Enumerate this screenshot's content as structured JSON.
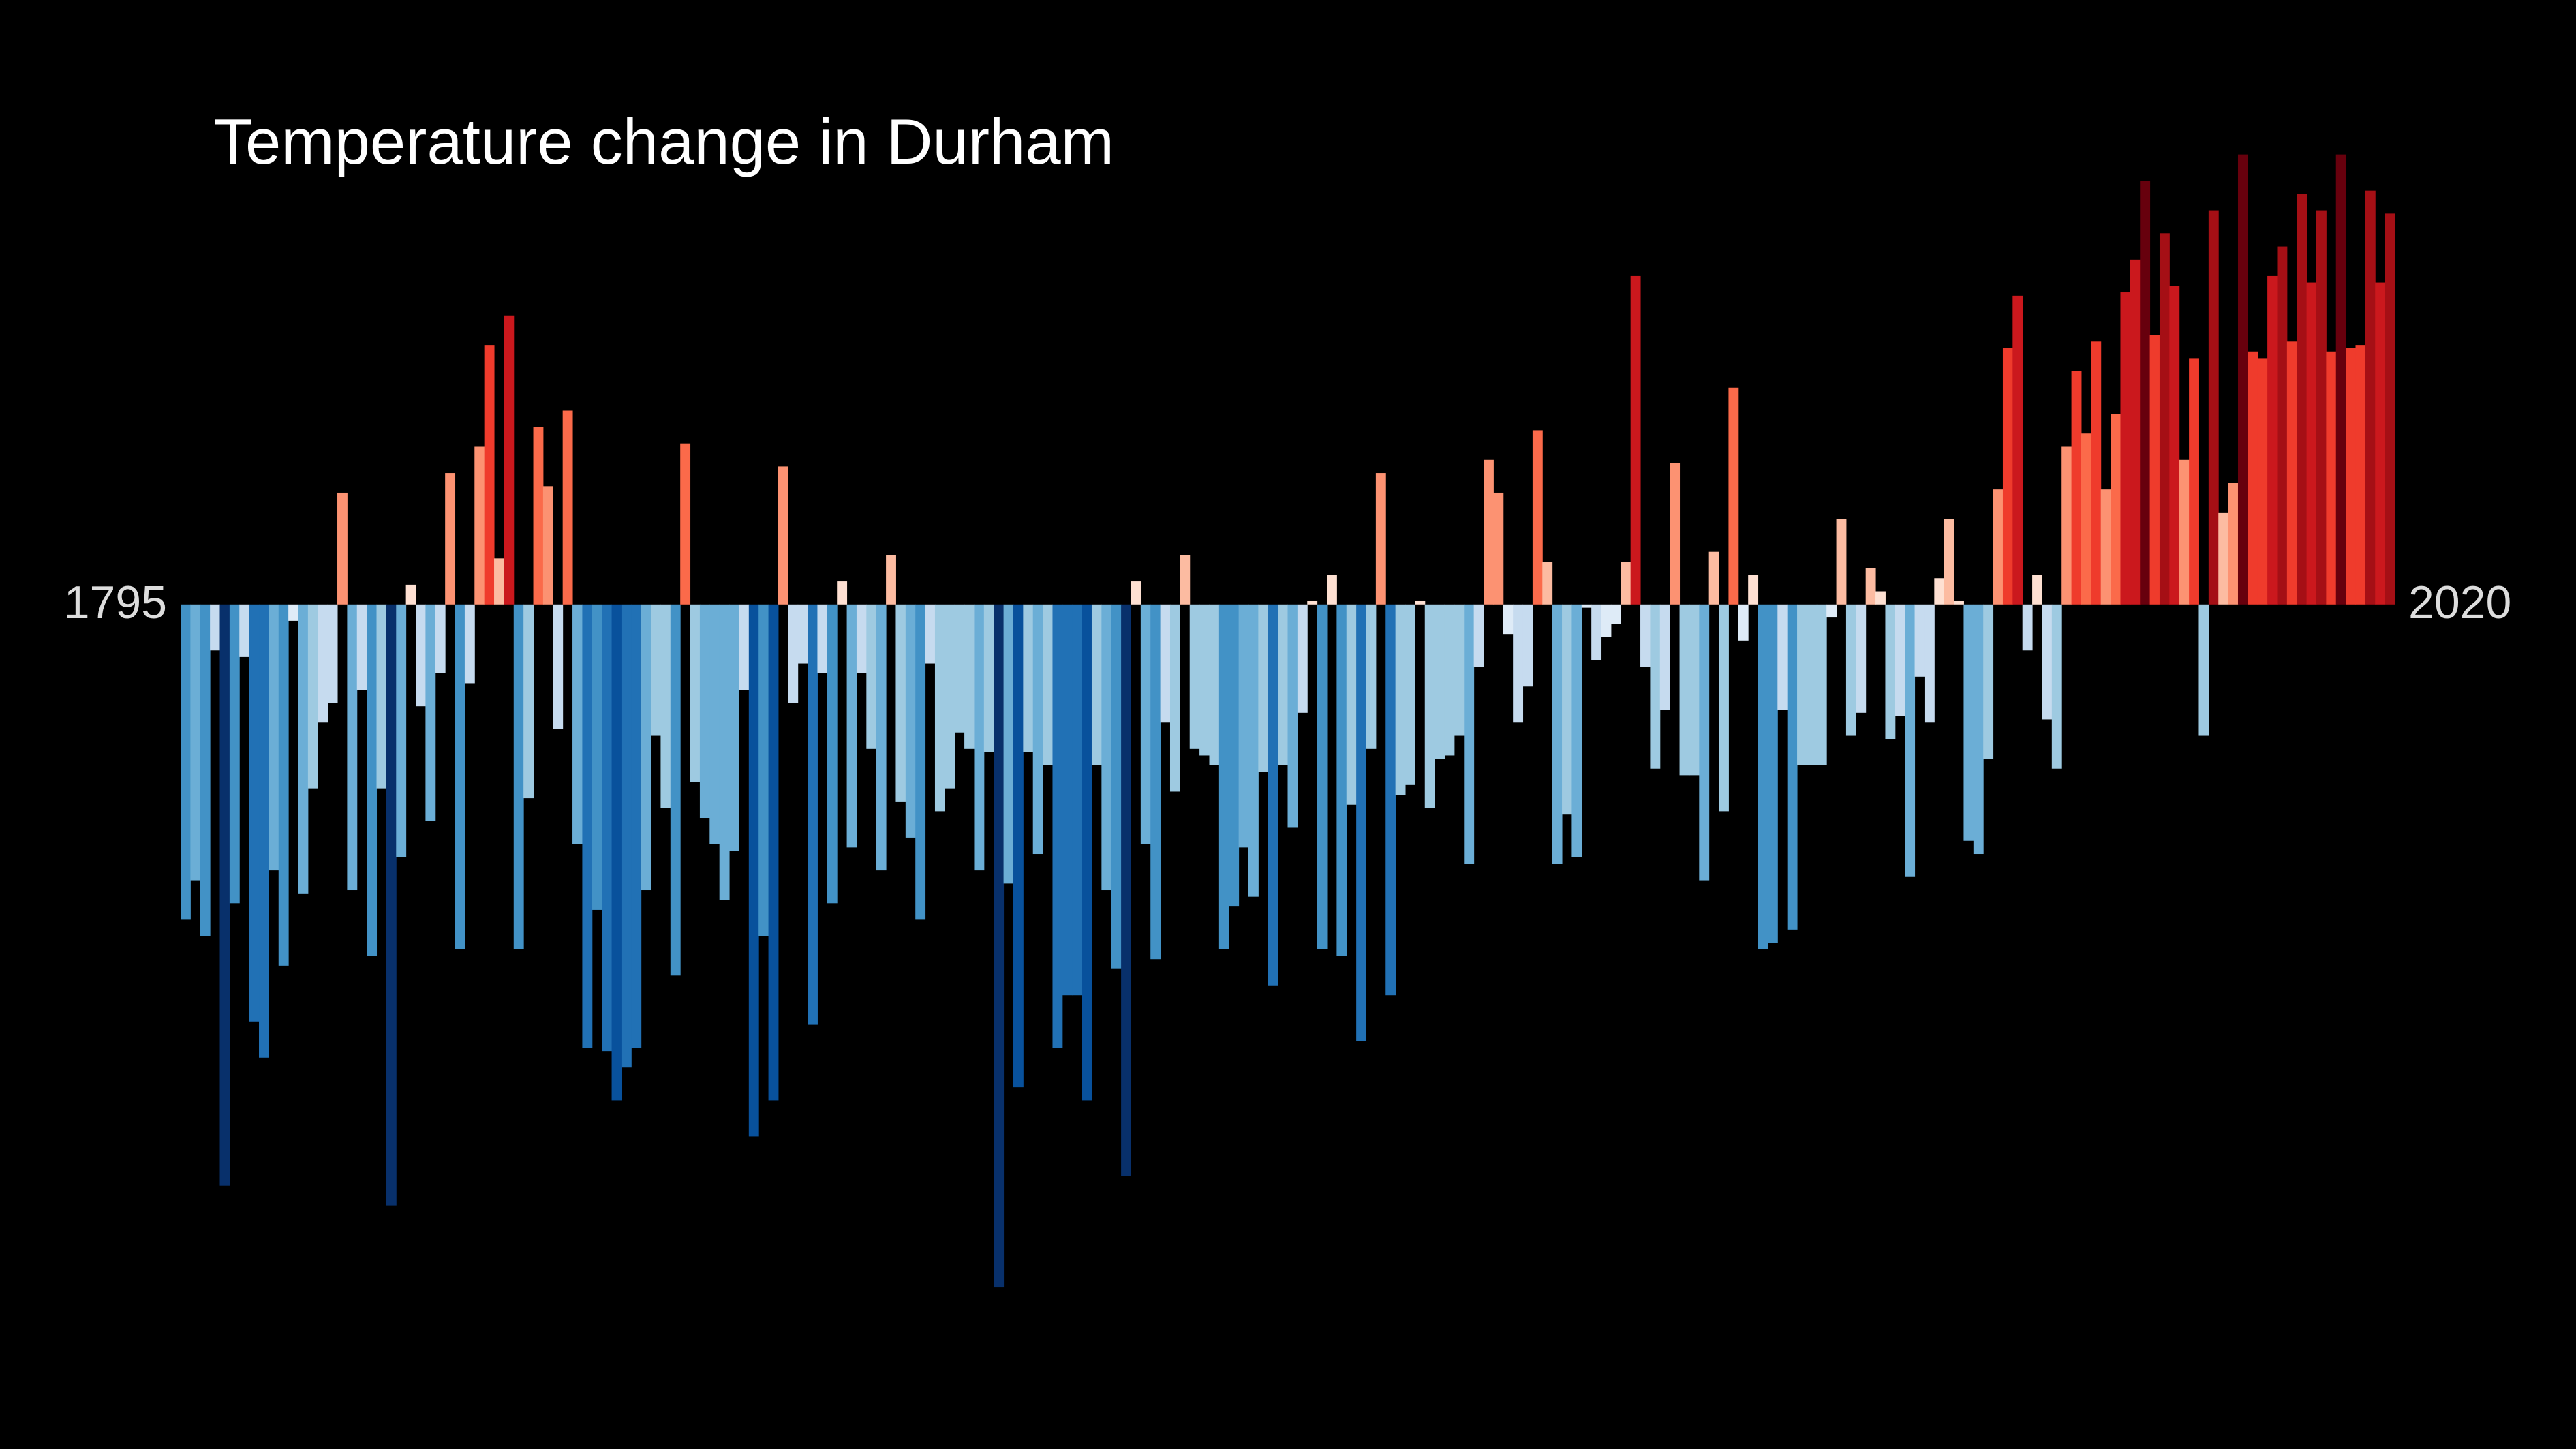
{
  "chart_data": {
    "type": "bar",
    "title": "Temperature change in Durham",
    "xlim": [
      1795,
      2020
    ],
    "xticks": [
      1795,
      2020
    ],
    "ylim": [
      -4.5,
      3.0
    ],
    "colors": [
      "#08306b",
      "#08519c",
      "#2171b5",
      "#4292c6",
      "#6baed6",
      "#9ecae1",
      "#c6dbef",
      "#deebf7",
      "#fee0d2",
      "#fcbba1",
      "#fc9272",
      "#fb6a4a",
      "#ef3b2c",
      "#cb181d",
      "#a50f15",
      "#67000d"
    ],
    "values": [
      -1.92,
      -1.68,
      -2.02,
      -0.28,
      -3.54,
      -1.82,
      -0.32,
      -2.54,
      -2.76,
      -1.62,
      -2.2,
      -0.1,
      -1.76,
      -1.12,
      -0.72,
      -0.6,
      0.68,
      -1.74,
      -0.52,
      -2.14,
      -1.12,
      -3.66,
      -1.54,
      0.12,
      -0.62,
      -1.32,
      -0.42,
      0.8,
      -2.1,
      -0.48,
      0.96,
      1.58,
      0.28,
      1.76,
      -2.1,
      -1.18,
      1.08,
      0.72,
      -0.76,
      1.18,
      -1.46,
      -2.7,
      -1.86,
      -2.72,
      -3.02,
      -2.82,
      -2.7,
      -1.74,
      -0.8,
      -1.24,
      -2.26,
      0.98,
      -1.08,
      -1.3,
      -1.46,
      -1.8,
      -1.5,
      -0.52,
      -3.24,
      -2.02,
      -3.02,
      0.84,
      -0.6,
      -0.36,
      -2.56,
      -0.42,
      -1.82,
      0.14,
      -1.48,
      -0.42,
      -0.88,
      -1.62,
      0.3,
      -1.2,
      -1.42,
      -1.92,
      -0.36,
      -1.26,
      -1.12,
      -0.78,
      -0.88,
      -1.62,
      -0.9,
      -4.16,
      -1.7,
      -2.94,
      -0.9,
      -1.52,
      -0.98,
      -2.7,
      -2.38,
      -2.38,
      -3.02,
      -0.98,
      -1.74,
      -2.22,
      -3.48,
      0.14,
      -1.46,
      -2.16,
      -0.72,
      -1.14,
      0.3,
      -0.88,
      -0.92,
      -0.98,
      -2.1,
      -1.84,
      -1.48,
      -1.78,
      -1.02,
      -2.32,
      -0.98,
      -1.36,
      -0.66,
      0.02,
      -2.1,
      0.18,
      -2.14,
      -1.22,
      -2.66,
      -0.88,
      0.8,
      -2.38,
      -1.16,
      -1.1,
      0.02,
      -1.24,
      -0.94,
      -0.92,
      -0.8,
      -1.58,
      -0.38,
      0.88,
      0.68,
      -0.18,
      -0.72,
      -0.5,
      1.06,
      0.26,
      -1.58,
      -1.28,
      -1.54,
      -0.02,
      -0.34,
      -0.2,
      -0.12,
      0.26,
      2.0,
      -0.38,
      -1.0,
      -0.64,
      0.86,
      -1.04,
      -1.04,
      -1.68,
      0.32,
      -1.26,
      1.32,
      -0.22,
      0.18,
      -2.1,
      -2.06,
      -0.64,
      -1.98,
      -0.98,
      -0.98,
      -0.98,
      -0.08,
      0.52,
      -0.8,
      -0.66,
      0.22,
      0.08,
      -0.82,
      -0.68,
      -1.66,
      -0.44,
      -0.72,
      0.16,
      0.52,
      0.02,
      -1.44,
      -1.52,
      -0.94,
      0.7,
      1.56,
      1.88,
      -0.28,
      0.18,
      -0.7,
      -1.0,
      0.96,
      1.42,
      1.04,
      1.6,
      0.7,
      1.16,
      1.9,
      2.1,
      2.58,
      1.64,
      2.26,
      1.94,
      0.88,
      1.5,
      -0.8,
      2.4,
      0.56,
      0.74,
      2.74,
      1.54,
      1.5,
      2.0,
      2.18,
      1.6,
      2.5,
      1.96,
      2.4,
      1.54,
      2.74,
      1.56,
      1.58,
      2.52,
      1.96,
      2.38
    ]
  }
}
